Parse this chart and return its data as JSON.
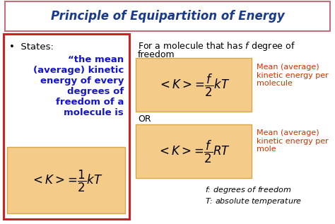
{
  "title": "Principle of Equipartition of Energy",
  "title_color": "#1a3a8c",
  "title_box_edge_color": "#c0707a",
  "background_color": "#ffffff",
  "left_box_border_color": "#cc2222",
  "formula_box_color": "#f5cb8a",
  "formula_box_edge": "#d4a84b",
  "bullet_states_color": "#000000",
  "quote_text_color": "#1515cc",
  "formula_text_color": "#000000",
  "orange_label_color": "#cc3300",
  "states_label": "States:",
  "quote_text": "“the mean\n(average) kinetic\nenergy of every\ndegrees of\nfreedom of a\nmolecule is",
  "label1": "Mean (average)\nkinetic energy per\nmolecule",
  "label2": "Mean (average)\nkinetic energy per\nmole",
  "or_text": "OR",
  "footer1": "f: degrees of freedom",
  "footer2": "T: absolute temperature"
}
